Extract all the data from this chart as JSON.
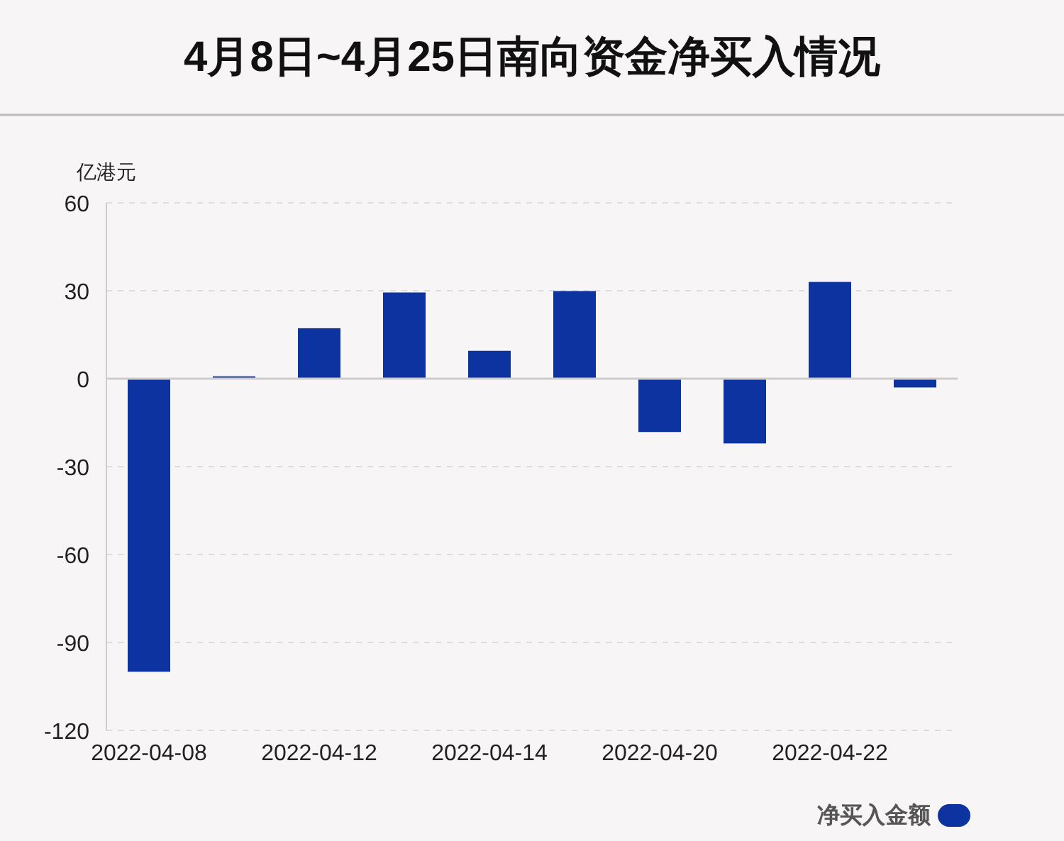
{
  "chart_data": {
    "type": "bar",
    "title": "4月8日~4月25日南向资金净买入情况",
    "ylabel": "亿港元",
    "categories": [
      "2022-04-08",
      null,
      "2022-04-12",
      null,
      "2022-04-14",
      null,
      "2022-04-20",
      null,
      "2022-04-22",
      null
    ],
    "series": [
      {
        "name": "净买入金额",
        "color": "#0d33a0",
        "values": [
          -100,
          0.8,
          17.2,
          29.4,
          9.5,
          29.9,
          -18.2,
          -22.1,
          33.0,
          -3.0
        ]
      }
    ],
    "ylim": [
      -120,
      60
    ],
    "yticks": [
      -120,
      -90,
      -60,
      -30,
      0,
      30,
      60
    ],
    "grid": "y",
    "legend": "bottom right"
  }
}
